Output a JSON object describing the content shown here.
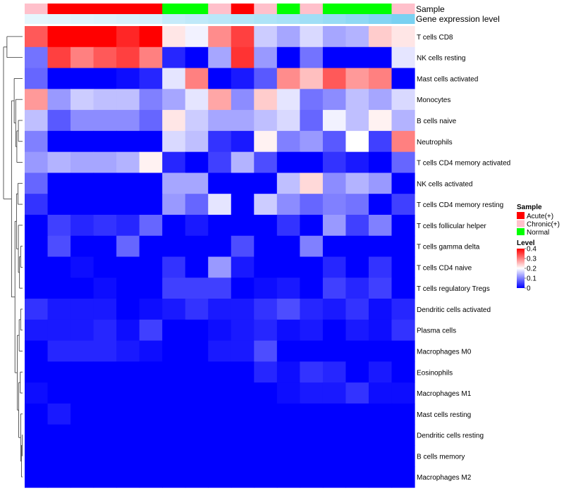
{
  "chart_data": {
    "type": "heatmap",
    "annotation_rows": [
      "Sample",
      "Gene expression level"
    ],
    "legend": {
      "sample_title": "Sample",
      "sample_entries": [
        {
          "label": "Acute(+)",
          "color": "#ff0000"
        },
        {
          "label": "Chronic(+)",
          "color": "#ffc0cb"
        },
        {
          "label": "Normal",
          "color": "#00ff00"
        }
      ],
      "level_title": "Level",
      "level_ticks": [
        "0.4",
        "0.3",
        "0.2",
        "0.1",
        "0"
      ],
      "level_tick_values": [
        0.4,
        0.3,
        0.2,
        0.1,
        0
      ],
      "level_range": [
        0,
        0.4
      ]
    },
    "color_scale": {
      "low": "#0000ff",
      "mid": "#ffffff",
      "high": "#ff0000",
      "midpoint": 0.2
    },
    "sample_groups": [
      "Chronic(+)",
      "Acute(+)",
      "Acute(+)",
      "Acute(+)",
      "Acute(+)",
      "Acute(+)",
      "Normal",
      "Normal",
      "Chronic(+)",
      "Acute(+)",
      "Chronic(+)",
      "Normal",
      "Chronic(+)",
      "Normal",
      "Normal",
      "Normal",
      "Chronic(+)"
    ],
    "sample_group_colors": {
      "Acute(+)": "#ff0000",
      "Chronic(+)": "#ffc0cb",
      "Normal": "#00ff00"
    },
    "expression_level": [
      0.1,
      0.12,
      0.14,
      0.16,
      0.18,
      0.2,
      0.3,
      0.34,
      0.38,
      0.42,
      0.46,
      0.5,
      0.55,
      0.6,
      0.66,
      0.73,
      0.8
    ],
    "expression_colors": {
      "low": "#f4fbff",
      "high": "#5bc6ee"
    },
    "rows": [
      "T cells CD8",
      "NK cells resting",
      "Mast cells activated",
      "Monocytes",
      "B cells naive",
      "Neutrophils",
      "T cells CD4 memory activated",
      "NK cells activated",
      "T cells CD4 memory resting",
      "T cells follicular helper",
      "T cells gamma delta",
      "T cells CD4 naive",
      "T cells regulatory  Tregs",
      "Dendritic cells activated",
      "Plasma cells",
      "Macrophages M0",
      "Eosinophils",
      "Macrophages M1",
      "Mast cells resting",
      "Dendritic cells resting",
      "B cells memory",
      "Macrophages M2"
    ],
    "values": [
      [
        0.33,
        0.4,
        0.4,
        0.4,
        0.37,
        0.4,
        0.22,
        0.19,
        0.29,
        0.35,
        0.16,
        0.13,
        0.17,
        0.13,
        0.14,
        0.24,
        0.22
      ],
      [
        0.09,
        0.35,
        0.3,
        0.33,
        0.35,
        0.3,
        0.03,
        0.0,
        0.13,
        0.36,
        0.12,
        0.0,
        0.09,
        0.0,
        0.0,
        0.0,
        0.18
      ],
      [
        0.08,
        0.0,
        0.0,
        0.0,
        0.01,
        0.03,
        0.18,
        0.3,
        0.0,
        0.02,
        0.07,
        0.29,
        0.25,
        0.33,
        0.28,
        0.3,
        0.0
      ],
      [
        0.28,
        0.12,
        0.16,
        0.15,
        0.15,
        0.1,
        0.13,
        0.18,
        0.27,
        0.11,
        0.24,
        0.18,
        0.09,
        0.11,
        0.15,
        0.13,
        0.17
      ],
      [
        0.15,
        0.07,
        0.11,
        0.11,
        0.11,
        0.08,
        0.22,
        0.16,
        0.13,
        0.13,
        0.15,
        0.17,
        0.08,
        0.19,
        0.15,
        0.21,
        0.14
      ],
      [
        0.1,
        0.0,
        0.0,
        0.0,
        0.0,
        0.0,
        0.17,
        0.15,
        0.04,
        0.02,
        0.21,
        0.1,
        0.12,
        0.07,
        0.2,
        0.05,
        0.3
      ],
      [
        0.12,
        0.14,
        0.13,
        0.13,
        0.14,
        0.21,
        0.03,
        0.0,
        0.05,
        0.14,
        0.06,
        0.0,
        0.0,
        0.04,
        0.02,
        0.0,
        0.08
      ],
      [
        0.08,
        0.0,
        0.0,
        0.0,
        0.0,
        0.0,
        0.13,
        0.13,
        0.0,
        0.0,
        0.0,
        0.15,
        0.23,
        0.11,
        0.14,
        0.12,
        0.0
      ],
      [
        0.04,
        0.0,
        0.0,
        0.0,
        0.0,
        0.0,
        0.12,
        0.08,
        0.18,
        0.0,
        0.16,
        0.11,
        0.08,
        0.1,
        0.09,
        0.0,
        0.05
      ],
      [
        0.0,
        0.05,
        0.03,
        0.04,
        0.03,
        0.08,
        0.0,
        0.02,
        0.0,
        0.0,
        0.0,
        0.04,
        0.0,
        0.12,
        0.05,
        0.1,
        0.0
      ],
      [
        0.0,
        0.06,
        0.0,
        0.0,
        0.08,
        0.0,
        0.0,
        0.0,
        0.0,
        0.06,
        0.0,
        0.0,
        0.1,
        0.0,
        0.0,
        0.0,
        0.0
      ],
      [
        0.0,
        0.0,
        0.01,
        0.0,
        0.0,
        0.0,
        0.04,
        0.0,
        0.12,
        0.02,
        0.0,
        0.0,
        0.0,
        0.03,
        0.0,
        0.04,
        0.0
      ],
      [
        0.0,
        0.0,
        0.0,
        0.01,
        0.0,
        0.0,
        0.05,
        0.05,
        0.05,
        0.0,
        0.01,
        0.02,
        0.0,
        0.05,
        0.03,
        0.05,
        0.0
      ],
      [
        0.04,
        0.02,
        0.02,
        0.02,
        0.0,
        0.01,
        0.02,
        0.04,
        0.02,
        0.02,
        0.04,
        0.06,
        0.03,
        0.02,
        0.04,
        0.01,
        0.03
      ],
      [
        0.02,
        0.02,
        0.02,
        0.03,
        0.01,
        0.05,
        0.0,
        0.0,
        0.01,
        0.02,
        0.03,
        0.01,
        0.02,
        0.0,
        0.02,
        0.01,
        0.04
      ],
      [
        0.0,
        0.03,
        0.03,
        0.03,
        0.02,
        0.01,
        0.0,
        0.0,
        0.02,
        0.02,
        0.06,
        0.0,
        0.0,
        0.0,
        0.0,
        0.0,
        0.0
      ],
      [
        0.0,
        0.0,
        0.0,
        0.0,
        0.0,
        0.0,
        0.0,
        0.0,
        0.0,
        0.0,
        0.03,
        0.01,
        0.04,
        0.03,
        0.0,
        0.02,
        0.0
      ],
      [
        0.01,
        0.0,
        0.0,
        0.0,
        0.0,
        0.0,
        0.0,
        0.0,
        0.0,
        0.0,
        0.0,
        0.01,
        0.02,
        0.02,
        0.04,
        0.01,
        0.01
      ],
      [
        0.0,
        0.02,
        0.0,
        0.0,
        0.0,
        0.0,
        0.0,
        0.0,
        0.0,
        0.0,
        0.0,
        0.0,
        0.0,
        0.0,
        0.0,
        0.0,
        0.0
      ],
      [
        0.0,
        0.0,
        0.0,
        0.0,
        0.0,
        0.0,
        0.0,
        0.0,
        0.0,
        0.0,
        0.0,
        0.0,
        0.0,
        0.0,
        0.0,
        0.0,
        0.0
      ],
      [
        0.0,
        0.0,
        0.0,
        0.0,
        0.0,
        0.0,
        0.0,
        0.0,
        0.0,
        0.0,
        0.0,
        0.0,
        0.0,
        0.0,
        0.0,
        0.0,
        0.0
      ],
      [
        0.0,
        0.0,
        0.0,
        0.0,
        0.0,
        0.0,
        0.0,
        0.0,
        0.0,
        0.0,
        0.0,
        0.0,
        0.0,
        0.0,
        0.0,
        0.0,
        0.0
      ]
    ]
  }
}
